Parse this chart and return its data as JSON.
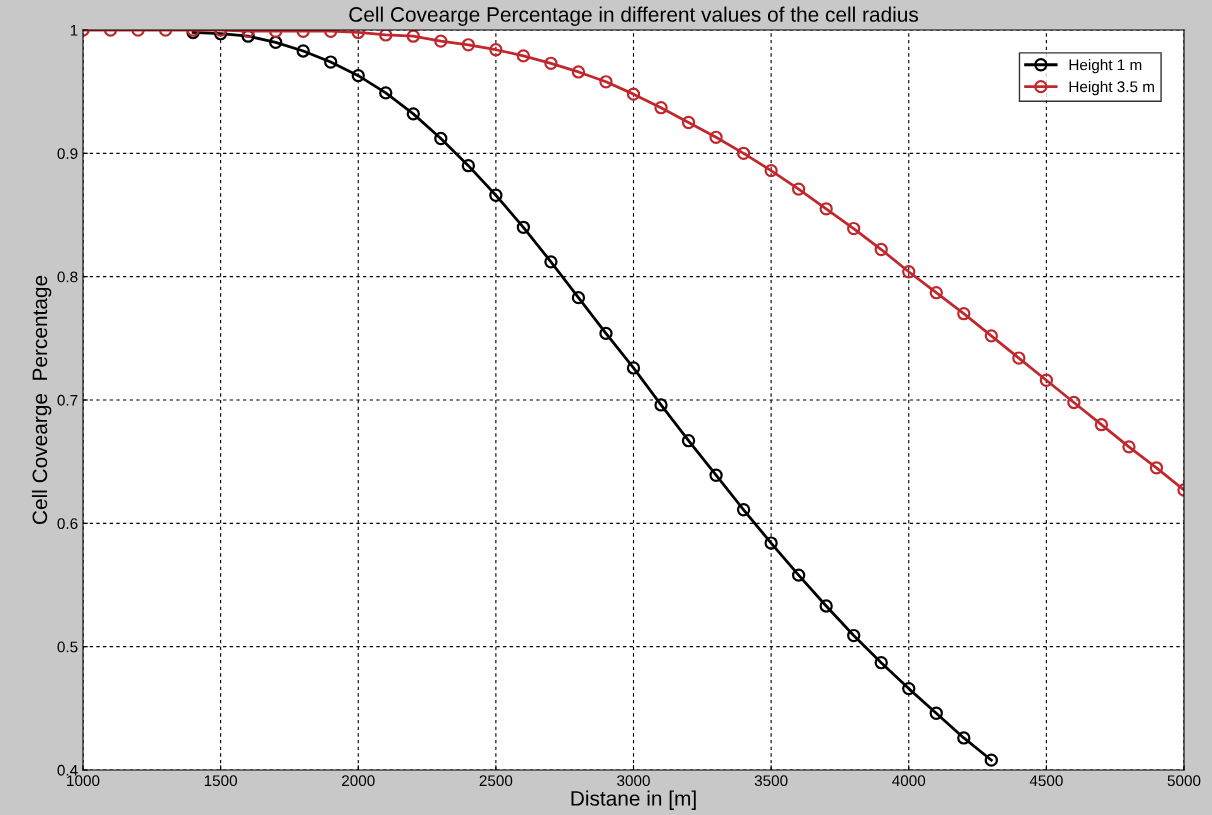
{
  "chart_data": {
    "type": "line",
    "title": "Cell Covearge Percentage in different values of the cell radius",
    "xlabel": "Distane in [m]",
    "ylabel": "Cell Covearge  Percentage",
    "x": [
      1000,
      1100,
      1200,
      1300,
      1400,
      1500,
      1600,
      1700,
      1800,
      1900,
      2000,
      2100,
      2200,
      2300,
      2400,
      2500,
      2600,
      2700,
      2800,
      2900,
      3000,
      3100,
      3200,
      3300,
      3400,
      3500,
      3600,
      3700,
      3800,
      3900,
      4000,
      4100,
      4200,
      4300,
      4400,
      4500,
      4600,
      4700,
      4800,
      4900,
      5000
    ],
    "series": [
      {
        "name": "Height 1 m",
        "color": "#000000",
        "values": [
          null,
          null,
          null,
          null,
          0.998,
          0.997,
          0.995,
          0.99,
          0.983,
          0.974,
          0.963,
          0.949,
          0.932,
          0.912,
          0.89,
          0.866,
          0.84,
          0.812,
          0.783,
          0.754,
          0.726,
          0.696,
          0.667,
          0.639,
          0.611,
          0.584,
          0.558,
          0.533,
          0.509,
          0.487,
          0.466,
          0.446,
          0.426,
          0.408,
          null,
          null,
          null,
          null,
          null,
          null,
          null
        ]
      },
      {
        "name": "Height 3.5 m",
        "color": "#c0282d",
        "values": [
          1.0,
          1.0,
          1.0,
          1.0,
          1.0,
          1.0,
          0.999,
          0.999,
          0.999,
          0.999,
          0.998,
          0.996,
          0.995,
          0.991,
          0.988,
          0.984,
          0.979,
          0.973,
          0.966,
          0.958,
          0.948,
          0.937,
          0.925,
          0.913,
          0.9,
          0.886,
          0.871,
          0.855,
          0.839,
          0.822,
          0.804,
          0.787,
          0.77,
          0.752,
          0.734,
          0.716,
          0.698,
          0.68,
          0.662,
          0.645,
          0.627
        ]
      }
    ],
    "xlim": [
      1000,
      5000
    ],
    "xticks": [
      1000,
      1500,
      2000,
      2500,
      3000,
      3500,
      4000,
      4500,
      5000
    ],
    "ylim": [
      0.4,
      1
    ],
    "yticks": [
      0.4,
      0.5,
      0.6,
      0.7,
      0.8,
      0.9,
      1
    ],
    "grid": true,
    "legend": "top right",
    "marker": "circle",
    "line_style": "solid"
  }
}
